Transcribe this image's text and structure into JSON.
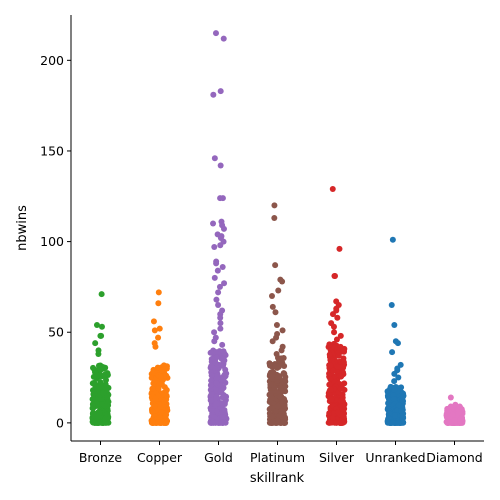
{
  "chart_data": {
    "type": "scatter",
    "subtype": "strip",
    "xlabel": "skillrank",
    "ylabel": "nbwins",
    "ylim": [
      -10,
      225
    ],
    "yticks": [
      0,
      50,
      100,
      150,
      200
    ],
    "grid": false,
    "legend": "none",
    "categories": [
      "Bronze",
      "Copper",
      "Gold",
      "Platinum",
      "Silver",
      "Unranked",
      "Diamond"
    ],
    "colors": [
      "#2ca02c",
      "#ff7f0e",
      "#9467bd",
      "#8c564b",
      "#d62728",
      "#1f77b4",
      "#e377c2"
    ],
    "dense_max": [
      32,
      32,
      40,
      36,
      44,
      20,
      8
    ],
    "outliers": [
      [
        71,
        54,
        53,
        48,
        48,
        44,
        40,
        38
      ],
      [
        72,
        66,
        56,
        52,
        51,
        47,
        44,
        42
      ],
      [
        215,
        212,
        183,
        181,
        146,
        142,
        124,
        124,
        111,
        110,
        109,
        107,
        104,
        103,
        102,
        100,
        98,
        97,
        89,
        88,
        86,
        84,
        80,
        77,
        75,
        72,
        68,
        65,
        62,
        60,
        58,
        55,
        52,
        50,
        47,
        45,
        43
      ],
      [
        120,
        113,
        87,
        79,
        78,
        73,
        70,
        64,
        61,
        54,
        51,
        49,
        47,
        45,
        42,
        40,
        38
      ],
      [
        129,
        96,
        81,
        81,
        67,
        65,
        63,
        62,
        60,
        58,
        55,
        53,
        50,
        48,
        46
      ],
      [
        101,
        65,
        54,
        45,
        44,
        39,
        32,
        30,
        29,
        27,
        25,
        23
      ],
      [
        14,
        10,
        9,
        9
      ]
    ]
  }
}
